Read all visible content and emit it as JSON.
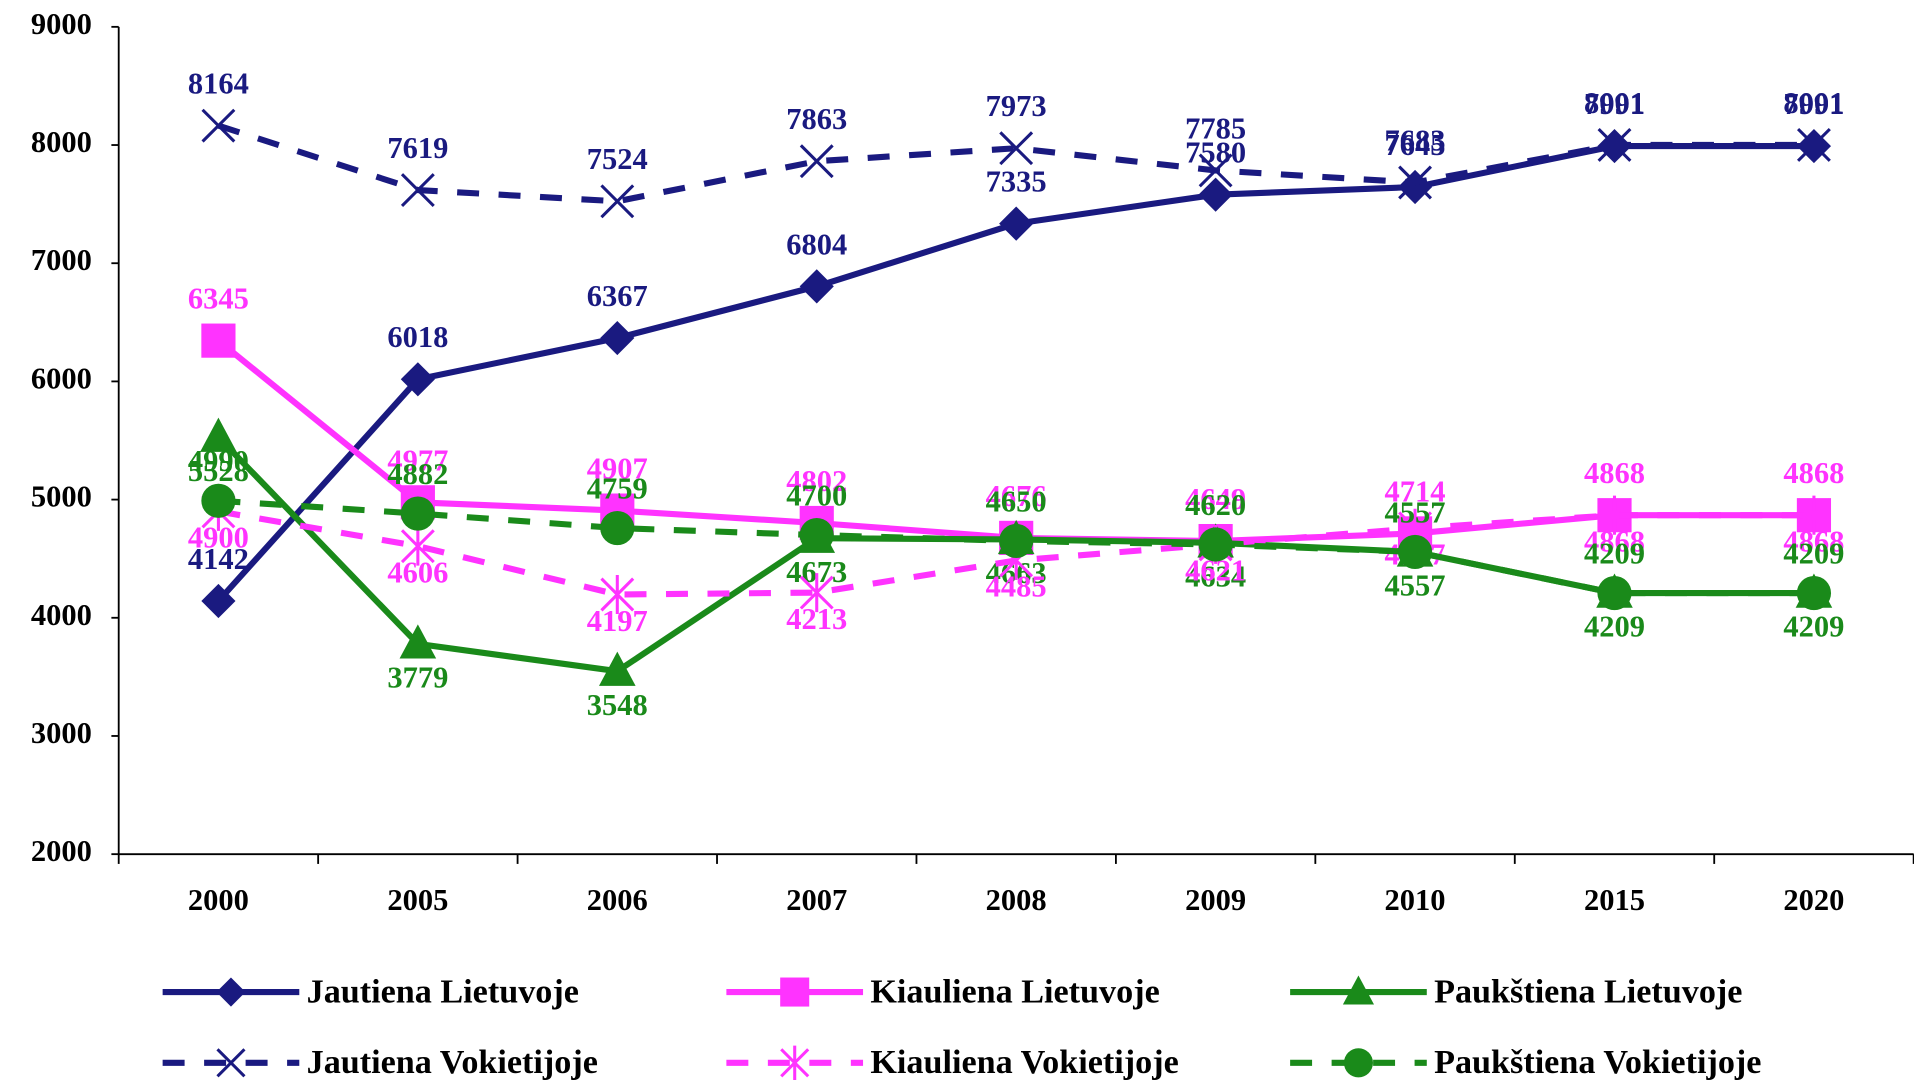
{
  "chart_data": {
    "type": "line",
    "categories": [
      "2000",
      "2005",
      "2006",
      "2007",
      "2008",
      "2009",
      "2010",
      "2015",
      "2020"
    ],
    "series": [
      {
        "name": "Jautiena Lietuvoje",
        "color": "#1a1a80",
        "dash": false,
        "marker": "diamond",
        "values": [
          4142,
          6018,
          6367,
          6804,
          7335,
          7580,
          7645,
          7991,
          7991
        ]
      },
      {
        "name": "Kiauliena Lietuvoje",
        "color": "#ff33ff",
        "dash": false,
        "marker": "square",
        "values": [
          6345,
          4977,
          4907,
          4802,
          4676,
          4649,
          4714,
          4868,
          4868
        ]
      },
      {
        "name": "Paukštiena Lietuvoje",
        "color": "#1a8a1a",
        "dash": false,
        "marker": "triangle",
        "values": [
          5528,
          3779,
          3548,
          4673,
          4663,
          4634,
          4557,
          4209,
          4209
        ]
      },
      {
        "name": "Jautiena Vokietijoje",
        "color": "#1a1a80",
        "dash": true,
        "marker": "x",
        "values": [
          8164,
          7619,
          7524,
          7863,
          7973,
          7785,
          7683,
          8001,
          8001
        ]
      },
      {
        "name": "Kiauliena Vokietijoje",
        "color": "#ff33ff",
        "dash": true,
        "marker": "asterisk",
        "values": [
          4900,
          4606,
          4197,
          4213,
          4485,
          4621,
          4757,
          4868,
          4868
        ]
      },
      {
        "name": "Paukštiena Vokietijoje",
        "color": "#1a8a1a",
        "dash": true,
        "marker": "circle",
        "values": [
          4990,
          4882,
          4759,
          4700,
          4650,
          4620,
          4557,
          4209,
          4209
        ]
      }
    ],
    "ylim": [
      2000,
      9000
    ],
    "yticks": [
      2000,
      3000,
      4000,
      5000,
      6000,
      7000,
      8000,
      9000
    ]
  }
}
